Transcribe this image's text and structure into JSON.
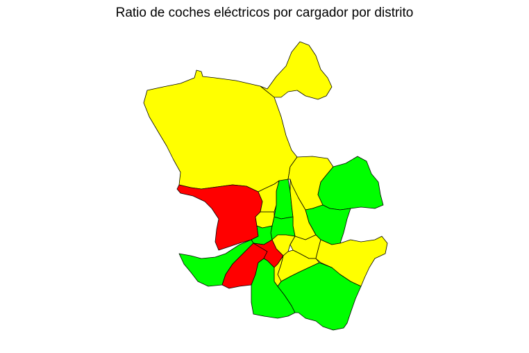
{
  "title": "Ratio de coches eléctricos por cargador por distrito",
  "colors": {
    "high": "#ff0000",
    "medium": "#ffff00",
    "low": "#00ff00",
    "border": "#000000",
    "background": "#ffffff"
  },
  "districts": [
    {
      "id": "north-large",
      "level": "medium"
    },
    {
      "id": "north-east-lobe",
      "level": "medium"
    },
    {
      "id": "north-central",
      "level": "medium"
    },
    {
      "id": "north-east",
      "level": "low"
    },
    {
      "id": "west",
      "level": "high"
    },
    {
      "id": "center-north-strip",
      "level": "low"
    },
    {
      "id": "center-left-a",
      "level": "medium"
    },
    {
      "id": "center-left-b",
      "level": "medium"
    },
    {
      "id": "center-right",
      "level": "medium"
    },
    {
      "id": "east-central",
      "level": "low"
    },
    {
      "id": "center-a",
      "level": "low"
    },
    {
      "id": "center-b",
      "level": "medium"
    },
    {
      "id": "center-c",
      "level": "medium"
    },
    {
      "id": "center-d",
      "level": "medium"
    },
    {
      "id": "east",
      "level": "medium"
    },
    {
      "id": "south-west",
      "level": "low"
    },
    {
      "id": "south-west-red",
      "level": "high"
    },
    {
      "id": "center-red",
      "level": "high"
    },
    {
      "id": "south-center-yellow",
      "level": "medium"
    },
    {
      "id": "south-center-green",
      "level": "low"
    },
    {
      "id": "south-east",
      "level": "low"
    }
  ]
}
